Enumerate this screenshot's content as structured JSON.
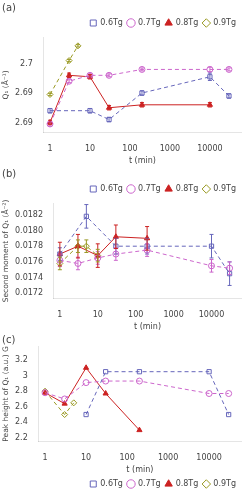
{
  "chart_data": [
    {
      "type": "line",
      "title": "(a)",
      "x_label": "t (min)",
      "y_label": "Q₁ (Å⁻¹)",
      "log": "x",
      "grid": false,
      "legend": "upper right",
      "xlim": [
        0.7,
        60000
      ],
      "xticks": [
        1,
        10,
        100,
        1000,
        10000
      ],
      "ylim": [
        2.6913,
        2.6978
      ],
      "yticks": [
        {
          "value": 2.692,
          "label": "2.69"
        },
        {
          "value": 2.694,
          "label": "2.69"
        },
        {
          "value": 2.696,
          "label": "2.7"
        }
      ],
      "series": [
        {
          "name": "0.6Tg",
          "color": "#6666bb",
          "marker": "open-square",
          "line_style": "dashed",
          "x": [
            1,
            10,
            30,
            200,
            10000,
            30000
          ],
          "values": [
            2.6928,
            2.6928,
            2.6922,
            2.694,
            2.6951,
            2.6938
          ],
          "errors": [
            0.00015,
            0.00015,
            0.00015,
            0.00015,
            0.00025,
            0.00015
          ]
        },
        {
          "name": "0.7Tg",
          "color": "#cc66cc",
          "marker": "open-circle",
          "line_style": "dashed",
          "x": [
            1,
            3,
            10,
            30,
            200,
            10000,
            30000
          ],
          "values": [
            2.6919,
            2.6948,
            2.6952,
            2.6952,
            2.6956,
            2.6956,
            2.6956
          ],
          "errors": [
            0.00015,
            0.0001,
            0.0001,
            0.0001,
            0.0001,
            0.00015,
            0.0001
          ]
        },
        {
          "name": "0.8Tg",
          "color": "#cc2222",
          "marker": "filled-triangle",
          "line_style": "solid",
          "x": [
            1,
            3,
            10,
            30,
            200,
            10000
          ],
          "values": [
            2.692,
            2.6952,
            2.6951,
            2.693,
            2.6932,
            2.6932
          ],
          "errors": [
            0.00015,
            0.00015,
            0.00015,
            0.00015,
            0.00015,
            0.00015
          ]
        },
        {
          "name": "0.9Tg",
          "color": "#999922",
          "marker": "open-diamond",
          "line_style": "dashed",
          "x": [
            1,
            3,
            5
          ],
          "values": [
            2.6939,
            2.6962,
            2.6972
          ],
          "errors": [
            8e-05,
            8e-05,
            8e-05
          ]
        }
      ]
    },
    {
      "type": "line",
      "title": "(b)",
      "x_label": "t (min)",
      "y_label": "Second moment of Q₁ (Å⁻²)",
      "log": "x",
      "grid": false,
      "legend": "upper right",
      "xlim": [
        0.7,
        60000
      ],
      "xticks": [
        1,
        10,
        100,
        1000,
        10000
      ],
      "ylim": [
        0.01713,
        0.01835
      ],
      "yticks": [
        0.0172,
        0.0174,
        0.0176,
        0.0178,
        {
          "value": 0.018,
          "label": "0.0180"
        },
        0.0182
      ],
      "series": [
        {
          "name": "0.6Tg",
          "color": "#6666bb",
          "marker": "open-square",
          "line_style": "dashed",
          "x": [
            1,
            5,
            30,
            200,
            10000,
            30000
          ],
          "values": [
            0.0177,
            0.01818,
            0.0178,
            0.0178,
            0.0178,
            0.01745
          ],
          "errors": [
            8e-05,
            0.00015,
            0.0001,
            0.0001,
            0.00015,
            0.00015
          ]
        },
        {
          "name": "0.7Tg",
          "color": "#cc66cc",
          "marker": "open-circle",
          "line_style": "dashed",
          "x": [
            1,
            3,
            10,
            30,
            200,
            10000,
            30000
          ],
          "values": [
            0.01762,
            0.01758,
            0.01765,
            0.0177,
            0.01775,
            0.01755,
            0.01752
          ],
          "errors": [
            8e-05,
            8e-05,
            8e-05,
            8e-05,
            8e-05,
            8e-05,
            8e-05
          ]
        },
        {
          "name": "0.8Tg",
          "color": "#cc2222",
          "marker": "filled-triangle",
          "line_style": "solid",
          "x": [
            1,
            3,
            10,
            30,
            200
          ],
          "values": [
            0.0177,
            0.0178,
            0.01768,
            0.01792,
            0.0179
          ],
          "errors": [
            0.00015,
            0.00015,
            0.00015,
            0.00015,
            0.00015
          ]
        },
        {
          "name": "0.9Tg",
          "color": "#999922",
          "marker": "open-diamond",
          "line_style": "dashed",
          "x": [
            1,
            3,
            5,
            10
          ],
          "values": [
            0.01758,
            0.0178,
            0.0178,
            0.01768
          ],
          "errors": [
            8e-05,
            8e-05,
            8e-05,
            8e-05
          ]
        }
      ]
    },
    {
      "type": "line",
      "title": "(c)",
      "x_label": "t (min)",
      "y_label": "Peak height of Q₁ (a.u.) G",
      "log": "x",
      "grid": false,
      "legend": "lower right",
      "xlim": [
        0.7,
        60000
      ],
      "xticks": [
        1,
        10,
        100,
        1000,
        10000
      ],
      "ylim": [
        2.15,
        3.38
      ],
      "yticks": [
        2.2,
        2.4,
        2.6,
        2.8,
        3,
        3.2
      ],
      "series": [
        {
          "name": "0.6Tg",
          "color": "#6666bb",
          "marker": "open-square",
          "line_style": "dashed",
          "x": [
            10,
            30,
            200,
            10000,
            30000
          ],
          "values": [
            2.5,
            3.05,
            3.05,
            3.05,
            2.5
          ]
        },
        {
          "name": "0.7Tg",
          "color": "#cc66cc",
          "marker": "open-circle",
          "line_style": "dashed",
          "x": [
            1,
            3,
            10,
            30,
            200,
            10000,
            30000
          ],
          "values": [
            2.78,
            2.7,
            2.91,
            2.93,
            2.93,
            2.77,
            2.77
          ]
        },
        {
          "name": "0.8Tg",
          "color": "#cc2222",
          "marker": "filled-triangle",
          "line_style": "solid",
          "x": [
            1,
            3,
            10,
            30,
            200
          ],
          "values": [
            2.78,
            2.64,
            3.1,
            2.77,
            2.3
          ]
        },
        {
          "name": "0.9Tg",
          "color": "#999922",
          "marker": "open-diamond",
          "line_style": "dashed",
          "x": [
            1,
            3,
            5
          ],
          "values": [
            2.8,
            2.5,
            2.65
          ]
        }
      ]
    }
  ]
}
